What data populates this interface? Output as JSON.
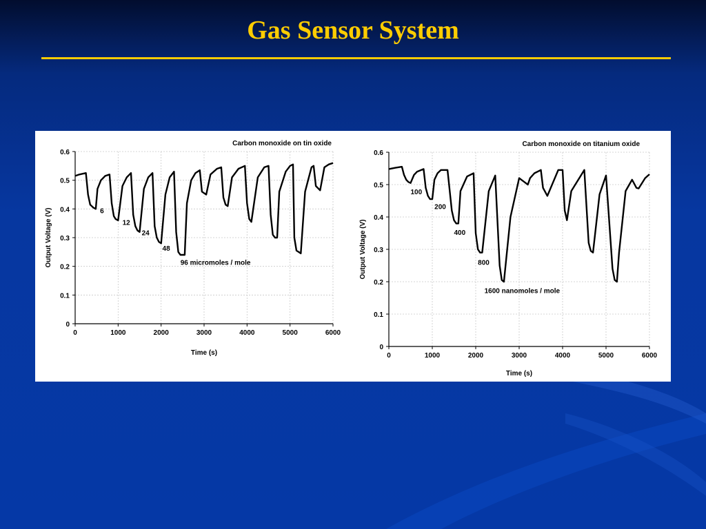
{
  "slide": {
    "title": "Gas Sensor System",
    "colors": {
      "title": "#ffcc00",
      "background": "#0538a6",
      "rule": "#ffcc00"
    }
  },
  "chart_data": [
    {
      "type": "line",
      "title": "Carbon monoxide on tin oxide",
      "xlabel": "Time (s)",
      "ylabel": "Output Voltage (V)",
      "xlim": [
        0,
        6000
      ],
      "ylim": [
        0,
        0.6
      ],
      "xticks": [
        "0",
        "1000",
        "2000",
        "3000",
        "4000",
        "5000",
        "6000"
      ],
      "yticks": [
        "0",
        "0.1",
        "0.2",
        "0.3",
        "0.4",
        "0.5",
        "0.6"
      ],
      "grid": true,
      "series": [
        {
          "x": [
            0,
            100,
            250,
            300,
            350,
            420,
            480,
            520,
            600,
            700,
            800,
            850,
            900,
            940,
            1000,
            1100,
            1200,
            1300,
            1350,
            1400,
            1450,
            1500,
            1600,
            1700,
            1800,
            1850,
            1900,
            1950,
            2000,
            2100,
            2200,
            2300,
            2350,
            2400,
            2450,
            2550,
            2600,
            2700,
            2800,
            2900,
            2950,
            3000,
            3050,
            3150,
            3300,
            3400,
            3450,
            3500,
            3550,
            3650,
            3800,
            3950,
            4000,
            4050,
            4100,
            4250,
            4400,
            4500,
            4550,
            4600,
            4650,
            4700,
            4750,
            4900,
            5000,
            5070,
            5100,
            5150,
            5200,
            5250,
            5350,
            5500,
            5550,
            5600,
            5700,
            5800,
            5900,
            6000
          ],
          "y": [
            0.515,
            0.52,
            0.525,
            0.45,
            0.415,
            0.405,
            0.4,
            0.47,
            0.5,
            0.515,
            0.52,
            0.42,
            0.375,
            0.365,
            0.36,
            0.48,
            0.51,
            0.525,
            0.38,
            0.34,
            0.325,
            0.32,
            0.47,
            0.51,
            0.525,
            0.34,
            0.3,
            0.285,
            0.28,
            0.45,
            0.51,
            0.53,
            0.32,
            0.25,
            0.24,
            0.24,
            0.42,
            0.5,
            0.525,
            0.535,
            0.46,
            0.455,
            0.45,
            0.52,
            0.54,
            0.545,
            0.44,
            0.415,
            0.41,
            0.51,
            0.54,
            0.55,
            0.42,
            0.365,
            0.355,
            0.51,
            0.545,
            0.55,
            0.38,
            0.31,
            0.3,
            0.3,
            0.46,
            0.53,
            0.55,
            0.555,
            0.3,
            0.255,
            0.25,
            0.245,
            0.46,
            0.545,
            0.55,
            0.48,
            0.465,
            0.545,
            0.555,
            0.56
          ]
        }
      ],
      "annotations": [
        {
          "text": "6",
          "x": 580,
          "y": 0.385
        },
        {
          "text": "12",
          "x": 1100,
          "y": 0.345
        },
        {
          "text": "24",
          "x": 1550,
          "y": 0.308
        },
        {
          "text": "48",
          "x": 2030,
          "y": 0.255
        },
        {
          "text": "96 micromoles / mole",
          "x": 2450,
          "y": 0.205
        }
      ]
    },
    {
      "type": "line",
      "title": "Carbon monoxide on titanium oxide",
      "xlabel": "Time (s)",
      "ylabel": "Output Voltage (V)",
      "xlim": [
        0,
        6000
      ],
      "ylim": [
        0,
        0.6
      ],
      "xticks": [
        "0",
        "1000",
        "2000",
        "3000",
        "4000",
        "5000",
        "6000"
      ],
      "yticks": [
        "0",
        "0.1",
        "0.2",
        "0.3",
        "0.4",
        "0.5",
        "0.6"
      ],
      "grid": true,
      "series": [
        {
          "x": [
            0,
            150,
            300,
            350,
            400,
            450,
            500,
            580,
            650,
            800,
            850,
            900,
            950,
            1000,
            1050,
            1120,
            1200,
            1350,
            1450,
            1500,
            1550,
            1600,
            1650,
            1800,
            1950,
            2000,
            2050,
            2100,
            2150,
            2300,
            2450,
            2550,
            2600,
            2650,
            2800,
            3000,
            3150,
            3200,
            3250,
            3350,
            3500,
            3550,
            3650,
            3900,
            4000,
            4050,
            4100,
            4200,
            4500,
            4600,
            4650,
            4700,
            4850,
            5000,
            5150,
            5200,
            5250,
            5300,
            5450,
            5600,
            5700,
            5750,
            5900,
            6000
          ],
          "y": [
            0.548,
            0.552,
            0.555,
            0.53,
            0.515,
            0.508,
            0.505,
            0.53,
            0.54,
            0.548,
            0.49,
            0.465,
            0.455,
            0.455,
            0.515,
            0.535,
            0.545,
            0.545,
            0.42,
            0.39,
            0.38,
            0.38,
            0.48,
            0.525,
            0.535,
            0.35,
            0.3,
            0.29,
            0.29,
            0.48,
            0.528,
            0.25,
            0.205,
            0.2,
            0.4,
            0.52,
            0.505,
            0.5,
            0.52,
            0.535,
            0.545,
            0.49,
            0.465,
            0.545,
            0.545,
            0.42,
            0.39,
            0.48,
            0.545,
            0.32,
            0.295,
            0.29,
            0.47,
            0.528,
            0.24,
            0.205,
            0.2,
            0.29,
            0.48,
            0.515,
            0.49,
            0.488,
            0.52,
            0.532
          ]
        }
      ],
      "annotations": [
        {
          "text": "100",
          "x": 500,
          "y": 0.47
        },
        {
          "text": "200",
          "x": 1050,
          "y": 0.425
        },
        {
          "text": "400",
          "x": 1500,
          "y": 0.345
        },
        {
          "text": "800",
          "x": 2050,
          "y": 0.252
        },
        {
          "text": "1600 nanomoles / mole",
          "x": 2200,
          "y": 0.165
        }
      ]
    }
  ]
}
